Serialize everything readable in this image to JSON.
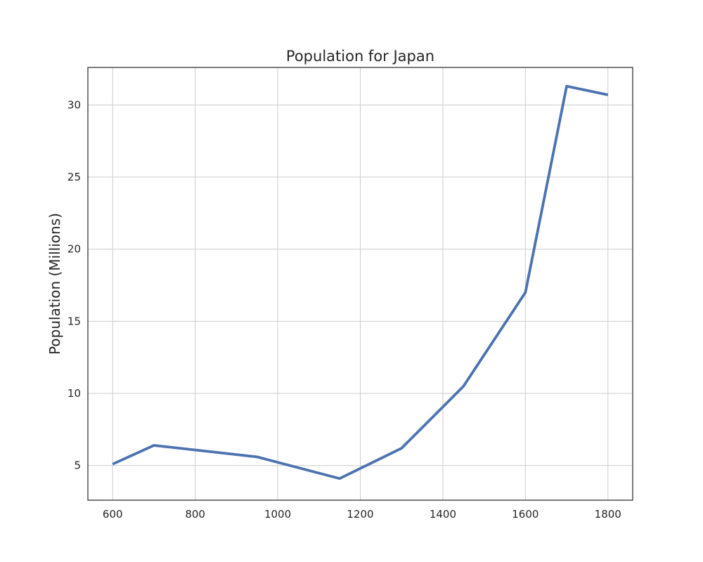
{
  "chart_data": {
    "type": "line",
    "title": "Population for Japan",
    "xlabel": "",
    "ylabel": "Population (Millions)",
    "x": [
      600,
      700,
      950,
      1150,
      1300,
      1450,
      1600,
      1700,
      1800
    ],
    "series": [
      {
        "values": [
          5.1,
          6.4,
          5.6,
          4.1,
          6.2,
          10.5,
          17.0,
          31.3,
          30.7
        ]
      }
    ],
    "xlim": [
      540,
      1860
    ],
    "ylim": [
      2.6,
      32.6
    ],
    "xticks": [
      600,
      800,
      1000,
      1200,
      1400,
      1600,
      1800
    ],
    "yticks": [
      5,
      10,
      15,
      20,
      25,
      30
    ],
    "xtick_labels": [
      "600",
      "800",
      "1000",
      "1200",
      "1400",
      "1600",
      "1800"
    ],
    "ytick_labels": [
      "5",
      "10",
      "15",
      "20",
      "25",
      "30"
    ],
    "grid": true,
    "line_color": "#4c72b0",
    "grid_color": "#cccccc",
    "frame_color": "#262626"
  }
}
